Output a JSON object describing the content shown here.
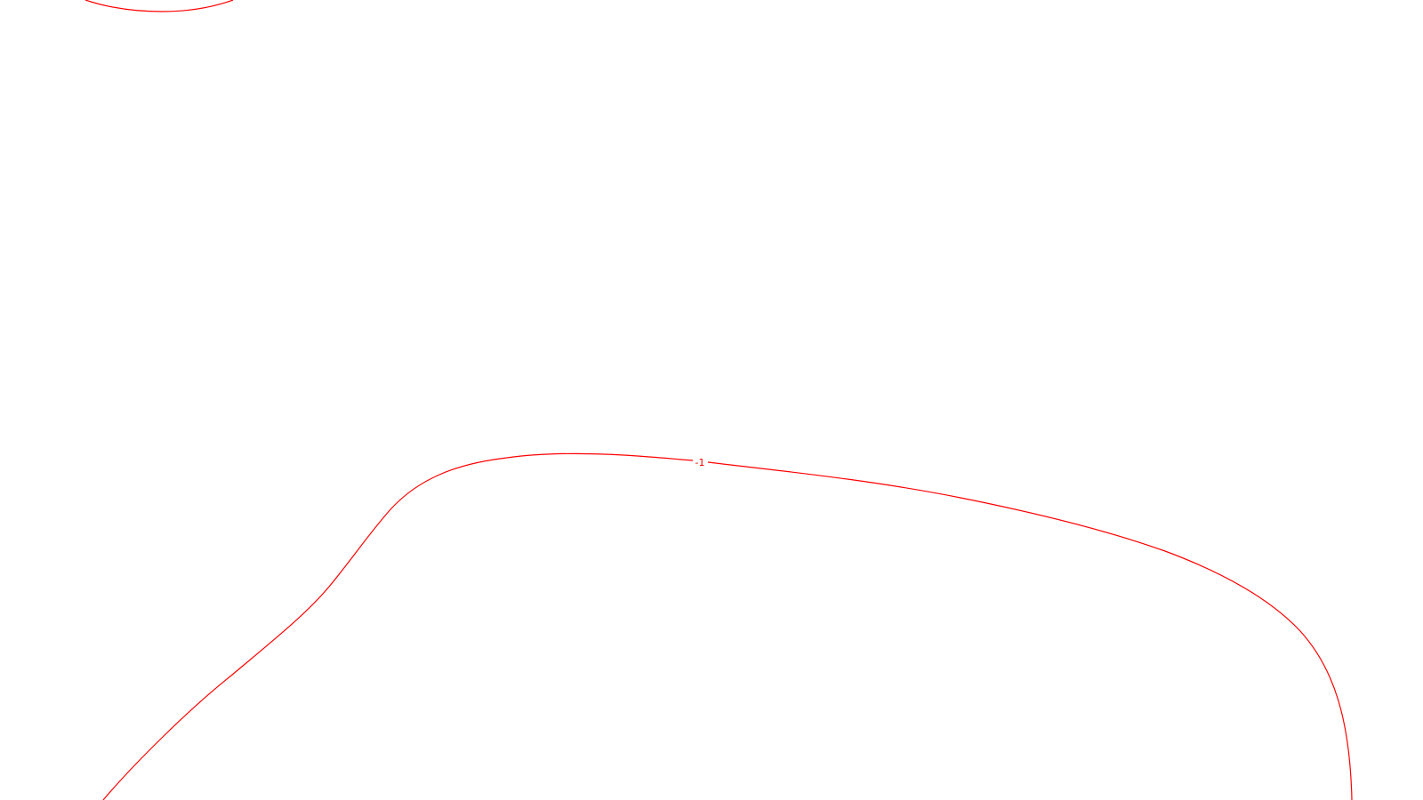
{
  "contours": [
    {
      "id": "top-left-arc",
      "label": "",
      "color": "#ff0000"
    },
    {
      "id": "main-curve",
      "label": "-1",
      "color": "#ff0000"
    }
  ]
}
